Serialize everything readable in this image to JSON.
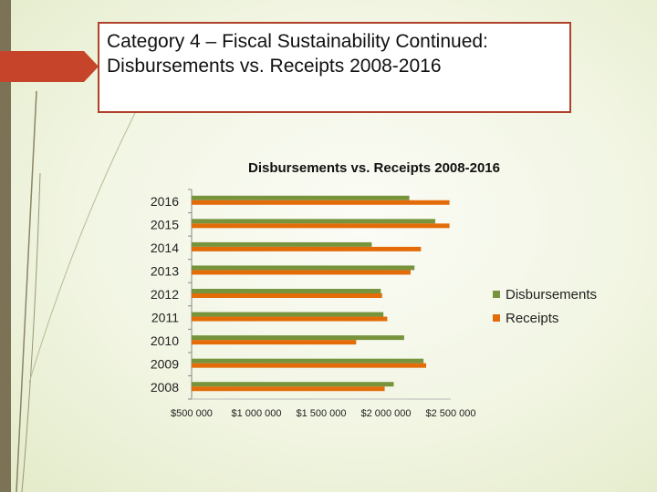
{
  "slide": {
    "title_line1": "Category 4 – Fiscal Sustainability Continued:",
    "title_line2": "Disbursements vs. Receipts 2008-2016"
  },
  "colors": {
    "disbursements": "#77933c",
    "receipts": "#e36c09",
    "title_border": "#b0412a",
    "left_bar": "#7c7356"
  },
  "chart_data": {
    "type": "bar",
    "orientation": "horizontal",
    "title": "Disbursements vs. Receipts 2008-2016",
    "categories": [
      "2008",
      "2009",
      "2010",
      "2011",
      "2012",
      "2013",
      "2014",
      "2015",
      "2016"
    ],
    "series": [
      {
        "name": "Disbursements",
        "values": [
          2060000,
          2290000,
          2140000,
          1980000,
          1960000,
          2220000,
          1890000,
          2380000,
          2180000
        ]
      },
      {
        "name": "Receipts",
        "values": [
          1990000,
          2310000,
          1770000,
          2010000,
          1970000,
          2190000,
          2270000,
          2490000,
          2490000
        ]
      }
    ],
    "x_tick_labels": [
      "$500 000",
      "$1 000 000",
      "$1 500 000",
      "$2 000 000",
      "$2 500 000"
    ],
    "x_ticks": [
      500000,
      1000000,
      1500000,
      2000000,
      2500000
    ],
    "xlim": [
      500000,
      2500000
    ],
    "grid": false,
    "legend_position": "right"
  }
}
